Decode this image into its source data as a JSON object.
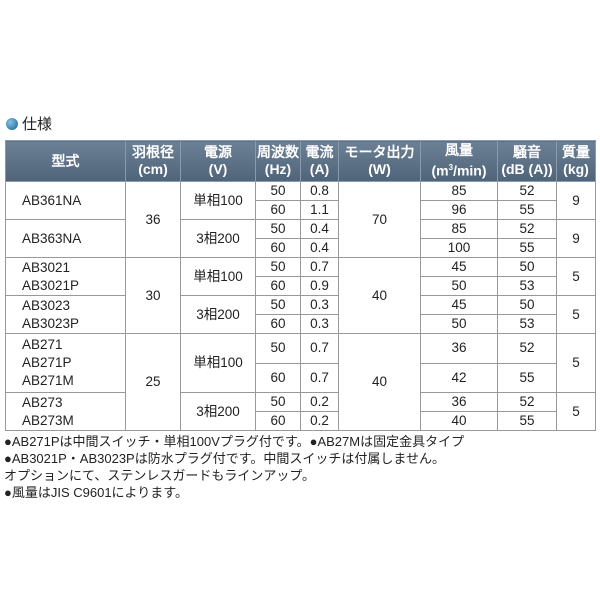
{
  "header": {
    "title": "仕様"
  },
  "table": {
    "headers": [
      {
        "name": "型式"
      },
      {
        "name": "羽根径",
        "unit": "(cm)"
      },
      {
        "name": "電源",
        "unit": "(V)"
      },
      {
        "name": "周波数",
        "unit": "(Hz)"
      },
      {
        "name": "電流",
        "unit": "(A)"
      },
      {
        "name": "モータ出力",
        "unit": "(W)"
      },
      {
        "name": "風量",
        "unit": "(m",
        "unit_sup": "3",
        "unit_after": "/min)"
      },
      {
        "name": "騒音",
        "unit": "(dB (A))"
      },
      {
        "name": "質量",
        "unit": "(kg)"
      }
    ],
    "groups": [
      {
        "diameter": 36,
        "motor_output": 70,
        "models": [
          {
            "names": [
              "AB361NA"
            ],
            "power": "単相100",
            "weight": 9,
            "rows": [
              {
                "hz": 50,
                "current": 0.8,
                "airflow": 85,
                "noise": 52
              },
              {
                "hz": 60,
                "current": 1.1,
                "airflow": 96,
                "noise": 55
              }
            ]
          },
          {
            "names": [
              "AB363NA"
            ],
            "power": "3相200",
            "weight": 9,
            "rows": [
              {
                "hz": 50,
                "current": 0.4,
                "airflow": 85,
                "noise": 52
              },
              {
                "hz": 60,
                "current": 0.4,
                "airflow": 100,
                "noise": 55
              }
            ]
          }
        ]
      },
      {
        "diameter": 30,
        "motor_output": 40,
        "models": [
          {
            "names": [
              "AB3021",
              "AB3021P"
            ],
            "power": "単相100",
            "weight": 5,
            "rows": [
              {
                "hz": 50,
                "current": 0.7,
                "airflow": 45,
                "noise": 50
              },
              {
                "hz": 60,
                "current": 0.9,
                "airflow": 50,
                "noise": 53
              }
            ]
          },
          {
            "names": [
              "AB3023",
              "AB3023P"
            ],
            "power": "3相200",
            "weight": 5,
            "rows": [
              {
                "hz": 50,
                "current": 0.3,
                "airflow": 45,
                "noise": 50
              },
              {
                "hz": 60,
                "current": 0.3,
                "airflow": 50,
                "noise": 53
              }
            ]
          }
        ]
      },
      {
        "diameter": 25,
        "motor_output": 40,
        "models": [
          {
            "names": [
              "AB271",
              "AB271P",
              "AB271M"
            ],
            "power": "単相100",
            "weight": 5,
            "rows": [
              {
                "hz": 50,
                "current": 0.7,
                "airflow": 36,
                "noise": 52
              },
              {
                "hz": 60,
                "current": 0.7,
                "airflow": 42,
                "noise": 55
              }
            ]
          },
          {
            "names": [
              "AB273",
              "AB273M"
            ],
            "power": "3相200",
            "weight": 5,
            "rows": [
              {
                "hz": 50,
                "current": 0.2,
                "airflow": 36,
                "noise": 52
              },
              {
                "hz": 60,
                "current": 0.2,
                "airflow": 40,
                "noise": 55
              }
            ]
          }
        ]
      }
    ]
  },
  "notes": [
    "●AB271Pは中間スイッチ・単相100Vプラグ付です。●AB27Mは固定金具タイプ",
    "●AB3021P・AB3023Pは防水プラグ付です。中間スイッチは付属しません。",
    "オプションにて、ステンレスガードもラインアップ。",
    "●風量はJIS C9601によります。"
  ]
}
